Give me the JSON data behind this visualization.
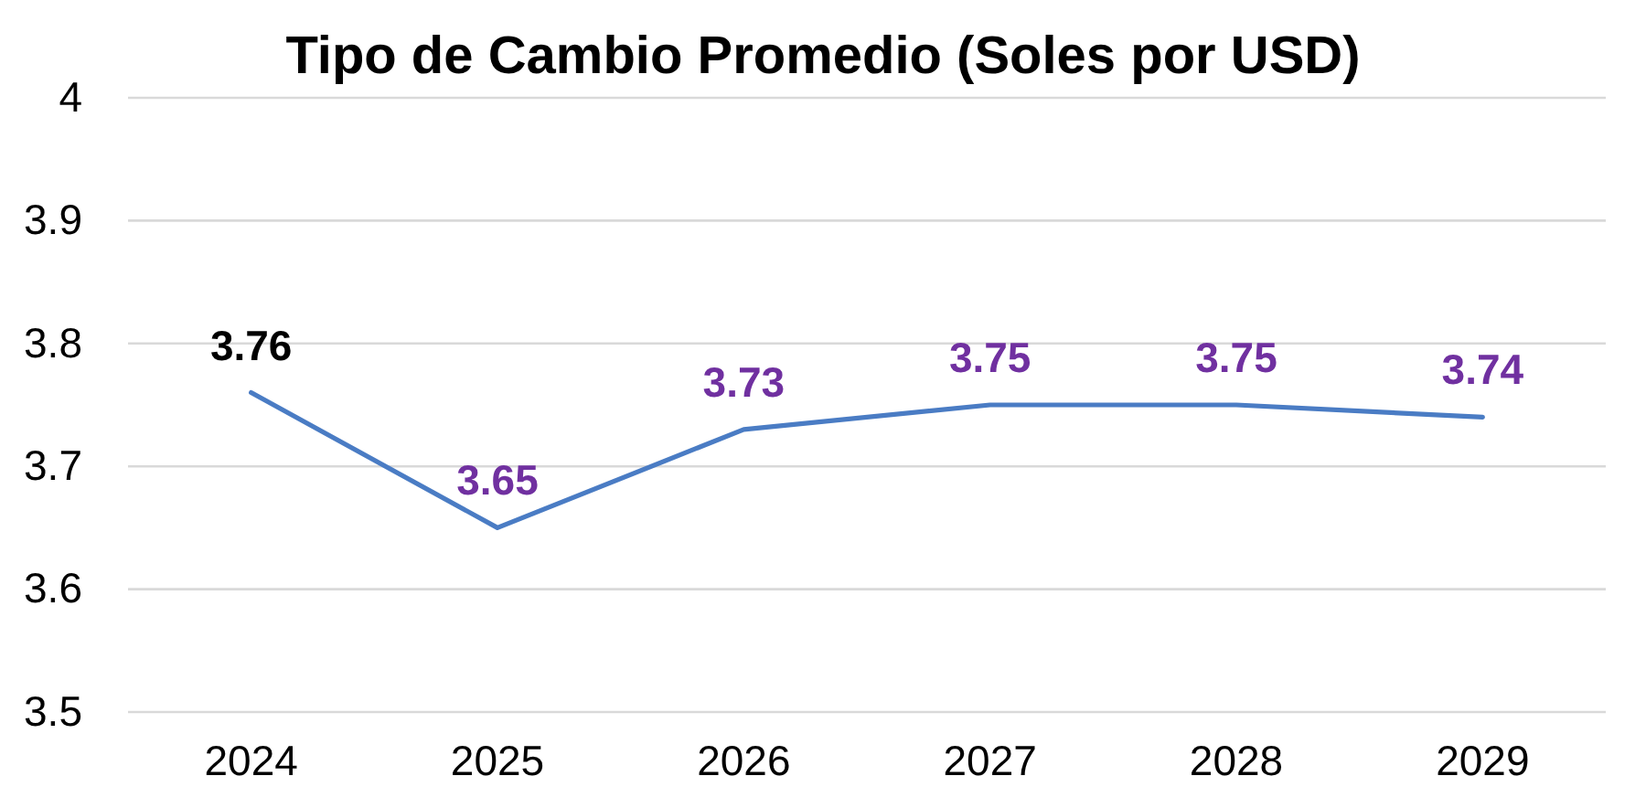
{
  "chart_data": {
    "type": "line",
    "title": "Tipo de Cambio Promedio (Soles por USD)",
    "categories": [
      "2024",
      "2025",
      "2026",
      "2027",
      "2028",
      "2029"
    ],
    "series": [
      {
        "color": "#4a7cc4",
        "values": [
          3.76,
          3.65,
          3.73,
          3.75,
          3.75,
          3.74
        ]
      }
    ],
    "ylim": [
      3.5,
      4
    ],
    "yticks": [
      3.5,
      3.6,
      3.7,
      3.8,
      3.9,
      4
    ],
    "grid": "y",
    "data_labels": true
  }
}
